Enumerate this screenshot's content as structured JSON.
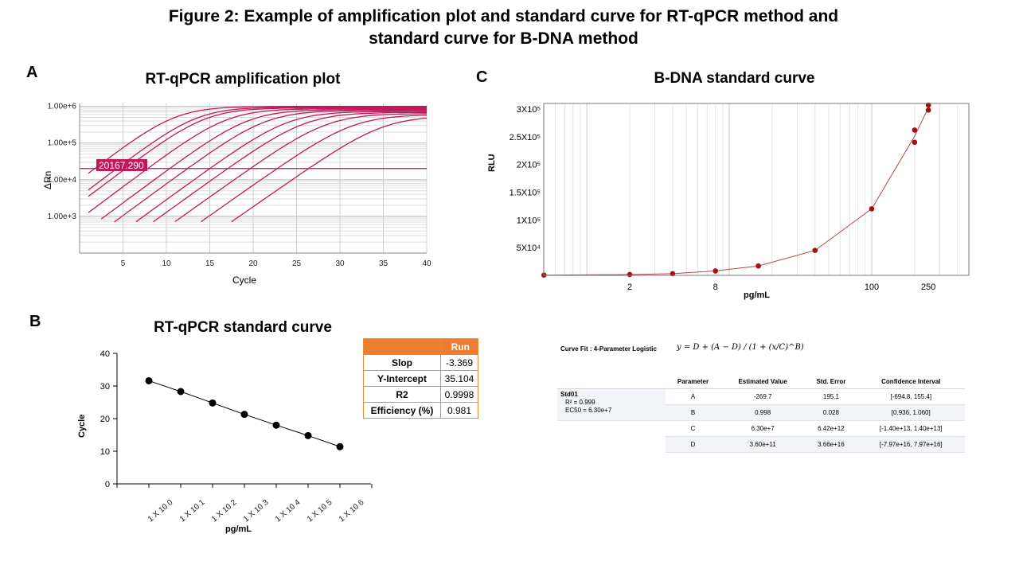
{
  "figure": {
    "title_line1": "Figure 2: Example of amplification plot and standard curve  for RT-qPCR method and",
    "title_line2": "standard curve for B-DNA method"
  },
  "panel_a": {
    "letter": "A",
    "title": "RT-qPCR amplification  plot",
    "ylabel": "ΔRn",
    "xlabel": "Cycle",
    "threshold_label": "20167.290",
    "line_color": "#c2185b"
  },
  "panel_b": {
    "letter": "B",
    "title": "RT-qPCR standard curve",
    "ylabel": "Cycle",
    "xlabel": "pg/mL",
    "run_table": {
      "header": "Run",
      "rows": [
        {
          "label": "Slop",
          "value": "-3.369"
        },
        {
          "label": "Y-Intercept",
          "value": "35.104"
        },
        {
          "label": "R2",
          "value": "0.9998"
        },
        {
          "label": "Efficiency (%)",
          "value": "0.981"
        }
      ],
      "header_color": "#ed7d31"
    }
  },
  "panel_c": {
    "letter": "C",
    "title": "B-DNA standard curve",
    "ylabel": "RLU",
    "xlabel": "pg/mL",
    "point_color": "#a40f0f",
    "curve_fit": {
      "heading": "Curve Fit : 4-Parameter Logistic",
      "equation": "y = D + (A − D) / (1 + (x/C)^B)",
      "columns": [
        "Parameter",
        "Estimated Value",
        "Std. Error",
        "Confidence Interval"
      ],
      "std_name": "Std01",
      "r2": "R² = 0.999",
      "ec50": "EC50 = 6.30e+7",
      "rows": [
        {
          "param": "A",
          "estimate": "-269.7",
          "std_error": "195.1",
          "ci": "[-694.8, 155.4]"
        },
        {
          "param": "B",
          "estimate": "0.998",
          "std_error": "0.028",
          "ci": "[0.936, 1.060]"
        },
        {
          "param": "C",
          "estimate": "6.30e+7",
          "std_error": "6.42e+12",
          "ci": "[-1.40e+13, 1.40e+13]"
        },
        {
          "param": "D",
          "estimate": "3.60e+11",
          "std_error": "3.66e+16",
          "ci": "[-7.97e+16, 7.97e+16]"
        }
      ]
    }
  },
  "chart_data": [
    {
      "type": "line",
      "title": "RT-qPCR amplification  plot",
      "xlabel": "Cycle",
      "ylabel": "ΔRn",
      "xlim": [
        0,
        40
      ],
      "x_ticks": [
        5,
        10,
        15,
        20,
        25,
        30,
        35,
        40
      ],
      "y_scale": "log",
      "ylim": [
        100,
        1200000
      ],
      "y_tick_labels": [
        "1.00e+3",
        "1.00e+4",
        "1.00e+5",
        "1.00e+6"
      ],
      "threshold": 20167.29,
      "curve_midpoints": [
        11,
        13.5,
        14.5,
        17,
        19.5,
        21.5,
        24,
        26,
        28.5,
        31.5,
        35
      ],
      "plateau": 1000000,
      "grid": true
    },
    {
      "type": "scatter",
      "title": "RT-qPCR standard curve",
      "xlabel": "pg/mL",
      "ylabel": "Cycle",
      "categories": [
        "1 X 10 0",
        "1 X 10 1",
        "1 X 10 2",
        "1 X 10 3",
        "1 X 10 4",
        "1 X 10 5",
        "1 X 10 6"
      ],
      "values": [
        31.6,
        28.3,
        24.8,
        21.3,
        18.0,
        14.8,
        11.4
      ],
      "ylim": [
        0,
        40
      ],
      "y_ticks": [
        0,
        10,
        20,
        30,
        40
      ],
      "trendline": true
    },
    {
      "type": "scatter",
      "title": "B-DNA standard curve",
      "xlabel": "pg/mL",
      "ylabel": "RLU",
      "x_scale": "log",
      "x": [
        0.5,
        2,
        4,
        8,
        16,
        40,
        100,
        200,
        200,
        250,
        250
      ],
      "y": [
        500,
        1500,
        3000,
        8000,
        17000,
        45000,
        120000,
        240000,
        262000,
        298000,
        307000
      ],
      "x_tick_labels": [
        "2",
        "8",
        "100",
        "250"
      ],
      "y_tick_labels": [
        "5X10⁴",
        "1X10⁵",
        "1.5X10⁵",
        "2X10⁵",
        "2.5X10⁵",
        "3X10⁵"
      ],
      "ylim": [
        0,
        310000
      ],
      "fit": "4-Parameter Logistic",
      "grid": true
    }
  ]
}
